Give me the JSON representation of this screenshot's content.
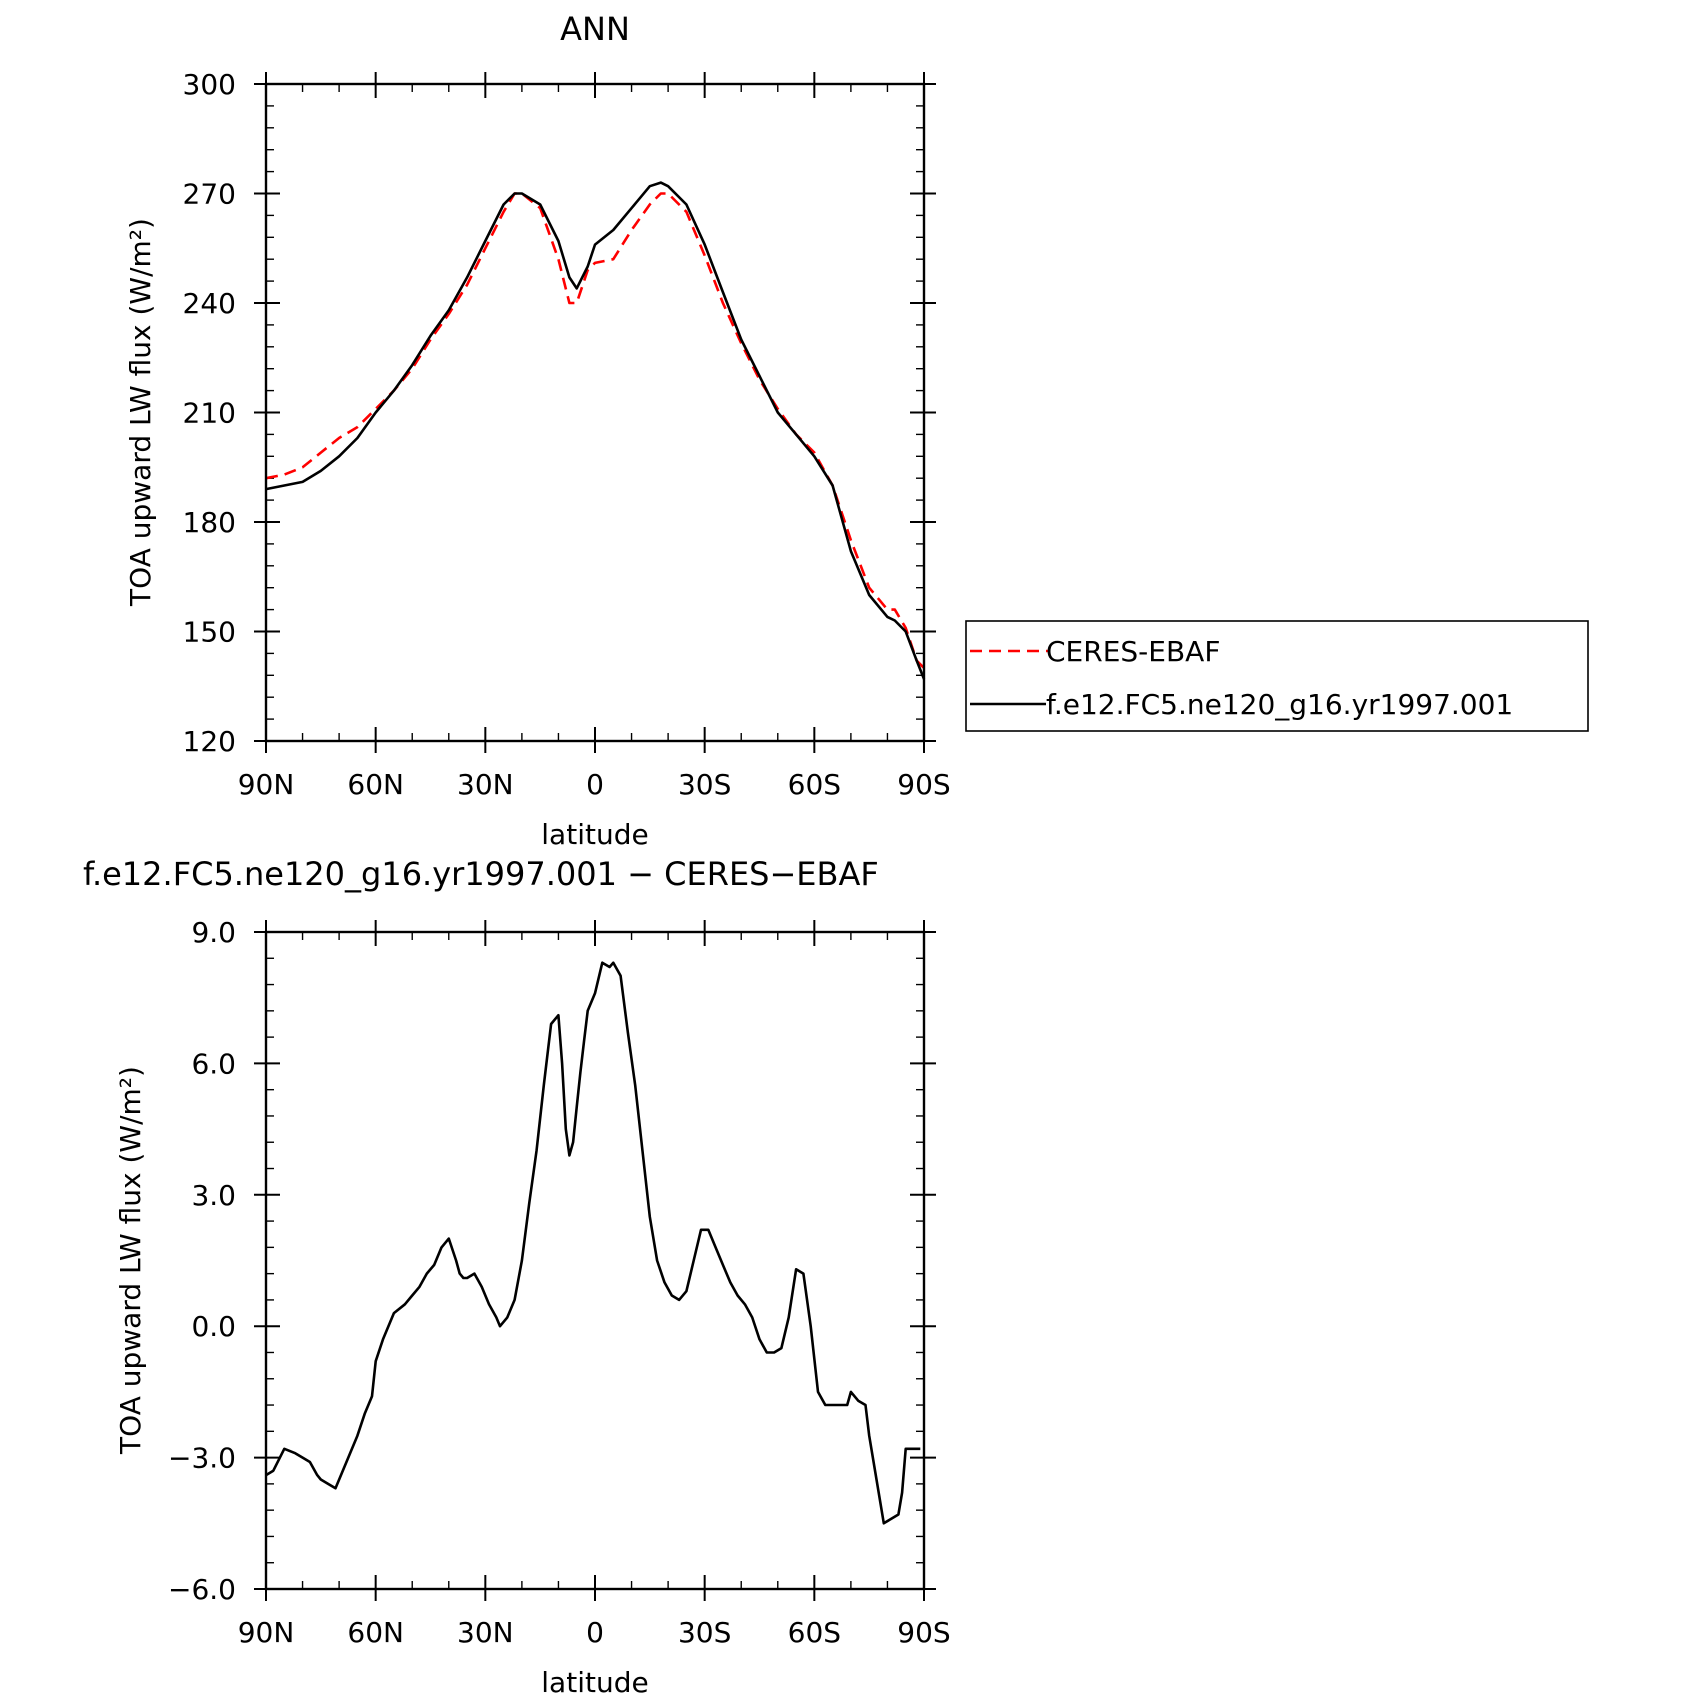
{
  "chart_data": [
    {
      "type": "line",
      "title": "ANN",
      "xlabel": "latitude",
      "ylabel": "TOA upward LW flux (W/m²)",
      "x_tick_labels": [
        "90N",
        "60N",
        "30N",
        "0",
        "30S",
        "60S",
        "90S"
      ],
      "y_tick_labels": [
        "120",
        "150",
        "180",
        "210",
        "240",
        "270",
        "300"
      ],
      "xlim": [
        90,
        -90
      ],
      "ylim": [
        120,
        300
      ],
      "x": [
        90,
        85,
        80,
        75,
        70,
        65,
        60,
        55,
        50,
        45,
        40,
        35,
        30,
        25,
        22,
        20,
        15,
        10,
        7,
        5,
        2,
        0,
        -5,
        -10,
        -15,
        -18,
        -20,
        -25,
        -30,
        -35,
        -40,
        -45,
        -50,
        -55,
        -60,
        -65,
        -70,
        -75,
        -80,
        -82,
        -85,
        -88,
        -90
      ],
      "series": [
        {
          "name": "CERES-EBAF",
          "color": "#ff0000",
          "dash": true,
          "values": [
            192,
            193,
            195,
            199,
            203,
            206,
            211,
            216,
            222,
            230,
            237,
            245,
            255,
            265,
            270,
            270,
            266,
            252,
            240,
            240,
            249,
            251,
            252,
            260,
            267,
            270,
            270,
            265,
            253,
            240,
            229,
            219,
            211,
            204,
            199,
            190,
            175,
            162,
            156,
            156,
            151,
            142,
            140
          ]
        },
        {
          "name": "f.e12.FC5.ne120_g16.yr1997.001",
          "color": "#000000",
          "dash": false,
          "values": [
            189,
            190,
            191,
            194,
            198,
            203,
            210,
            216,
            223,
            231,
            238,
            247,
            257,
            267,
            270,
            270,
            267,
            257,
            247,
            244,
            250,
            256,
            260,
            266,
            272,
            273,
            272,
            267,
            256,
            243,
            230,
            220,
            210,
            204,
            198,
            190,
            172,
            160,
            154,
            153,
            150,
            142,
            137
          ]
        }
      ]
    },
    {
      "type": "line",
      "title": "f.e12.FC5.ne120_g16.yr1997.001 − CERES−EBAF",
      "xlabel": "latitude",
      "ylabel": "TOA upward LW flux (W/m²)",
      "x_tick_labels": [
        "90N",
        "60N",
        "30N",
        "0",
        "30S",
        "60S",
        "90S"
      ],
      "y_tick_labels": [
        "−6.0",
        "−3.0",
        "0.0",
        "3.0",
        "6.0",
        "9.0"
      ],
      "xlim": [
        90,
        -90
      ],
      "ylim": [
        -6,
        9
      ],
      "x": [
        90,
        88,
        85,
        82,
        80,
        78,
        76,
        75,
        73,
        71,
        69,
        67,
        65,
        63,
        61,
        60,
        58,
        55,
        52,
        50,
        48,
        46,
        44,
        42,
        40,
        38,
        37,
        36,
        35,
        33,
        31,
        29,
        27,
        26,
        24,
        22,
        20,
        18,
        16,
        14,
        12,
        10,
        9,
        8,
        7,
        6,
        5,
        4,
        3,
        2,
        0,
        -2,
        -4,
        -5,
        -7,
        -9,
        -11,
        -13,
        -15,
        -17,
        -19,
        -21,
        -23,
        -25,
        -27,
        -29,
        -31,
        -33,
        -35,
        -37,
        -39,
        -41,
        -43,
        -45,
        -47,
        -49,
        -51,
        -53,
        -55,
        -57,
        -59,
        -61,
        -63,
        -65,
        -67,
        -69,
        -70,
        -72,
        -74,
        -75,
        -77,
        -79,
        -81,
        -83,
        -84,
        -85,
        -86,
        -87,
        -88,
        -89
      ],
      "series": [
        {
          "name": "",
          "color": "#000000",
          "dash": false,
          "values": [
            -3.4,
            -3.3,
            -2.8,
            -2.9,
            -3.0,
            -3.1,
            -3.4,
            -3.5,
            -3.6,
            -3.7,
            -3.3,
            -2.9,
            -2.5,
            -2.0,
            -1.6,
            -0.8,
            -0.3,
            0.3,
            0.5,
            0.7,
            0.9,
            1.2,
            1.4,
            1.8,
            2.0,
            1.5,
            1.2,
            1.1,
            1.1,
            1.2,
            0.9,
            0.5,
            0.2,
            0.0,
            0.2,
            0.6,
            1.5,
            2.8,
            4.0,
            5.5,
            6.9,
            7.1,
            6.0,
            4.5,
            3.9,
            4.2,
            5.0,
            5.8,
            6.5,
            7.2,
            7.6,
            8.3,
            8.2,
            8.3,
            8.0,
            6.7,
            5.5,
            4.0,
            2.5,
            1.5,
            1.0,
            0.7,
            0.6,
            0.8,
            1.5,
            2.2,
            2.2,
            1.8,
            1.4,
            1.0,
            0.7,
            0.5,
            0.2,
            -0.3,
            -0.6,
            -0.6,
            -0.5,
            0.2,
            1.3,
            1.2,
            0.0,
            -1.5,
            -1.8,
            -1.8,
            -1.8,
            -1.8,
            -1.5,
            -1.7,
            -1.8,
            -2.5,
            -3.5,
            -4.5,
            -4.4,
            -4.3,
            -3.8,
            -2.8,
            -2.8,
            -2.8,
            -2.8,
            -2.8
          ]
        }
      ]
    }
  ]
}
